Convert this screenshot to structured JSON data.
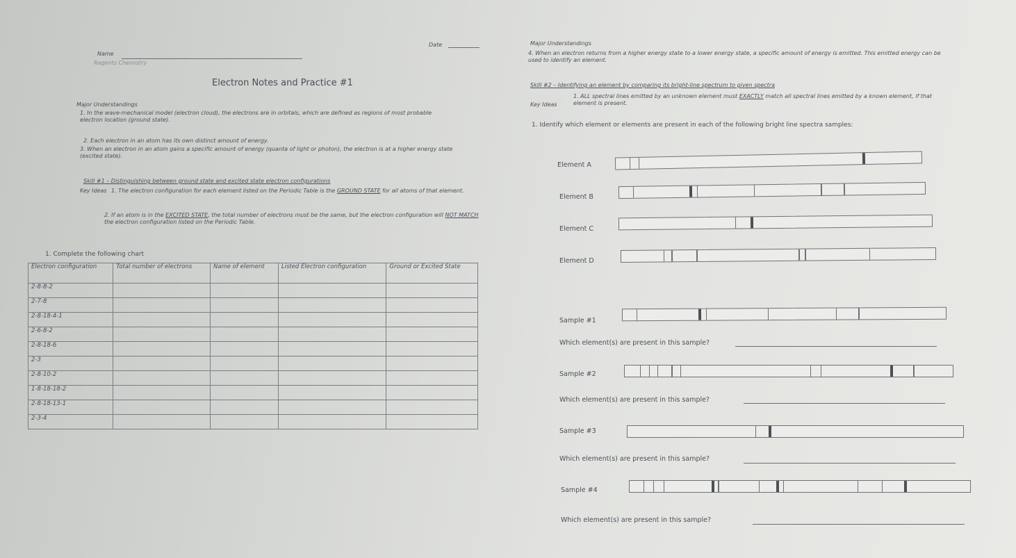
{
  "header": {
    "name_label": "Name",
    "date_label": "Date",
    "course": "Regents Chemistry",
    "title": "Electron Notes and Practice #1"
  },
  "left": {
    "major_heading": "Major Understandings",
    "understandings": [
      "1. In the wave-mechanical model (electron cloud), the electrons are in orbitals, which are defined as regions of most probable electron location (ground state).",
      "2. Each electron in an atom has its own distinct amount of energy.",
      "3. When an electron in an atom gains a specific amount of energy (quanta of light or photon), the electron is at a higher energy state (excited state)."
    ],
    "skill": "Skill #1 – Distinguishing between ground state and excited state electron configurations",
    "key_ideas_label": "Key Ideas",
    "key_ideas": [
      {
        "before": "1.  The electron configuration for each element listed on the Periodic Table is the ",
        "underlined": "GROUND STATE",
        "after": " for all atoms of that element."
      },
      {
        "before": "2.  If an atom is in the ",
        "underlined": "EXCITED STATE",
        "middle": ", the total number of electrons must be the same, but the electron configuration will ",
        "underlined2": "NOT MATCH",
        "after": " the electron configuration listed on the Periodic Table."
      }
    ],
    "question": "1. Complete the following chart"
  },
  "table": {
    "headers": [
      "Electron configuration",
      "Total number of electrons",
      "Name of element",
      "Listed Electron configuration",
      "Ground or Excited State"
    ],
    "rows": [
      "2-8-8-2",
      "2-7-8",
      "2-8-18-4-1",
      "2-6-8-2",
      "2-8-18-6",
      "2-3",
      "2-8-10-2",
      "1-8-18-18-2",
      "2-8-18-13-1",
      "2-3-4"
    ]
  },
  "right": {
    "major_heading": "Major Understandings",
    "understanding": "4. When an electron returns from a higher energy state to a lower energy state, a specific amount of energy is emitted. This emitted energy can be used to identify an element.",
    "skill": "Skill #2 – Identifying an element by comparing its bright-line spectrum to given spectra",
    "key_ideas_label": "Key Ideas",
    "key_idea": {
      "before": "1.  ALL spectral lines emitted by an unknown element must ",
      "underlined": "EXACTLY",
      "after": " match all spectral lines emitted by a known element, if that element is present."
    },
    "question": "1. Identify which element or elements are present in each of the following bright line spectra samples:",
    "spectra": [
      "Element A",
      "Element B",
      "Element C",
      "Element D",
      "Sample #1",
      "Sample #2",
      "Sample #3",
      "Sample #4"
    ],
    "prompt": "Which element(s) are present in this sample?"
  }
}
